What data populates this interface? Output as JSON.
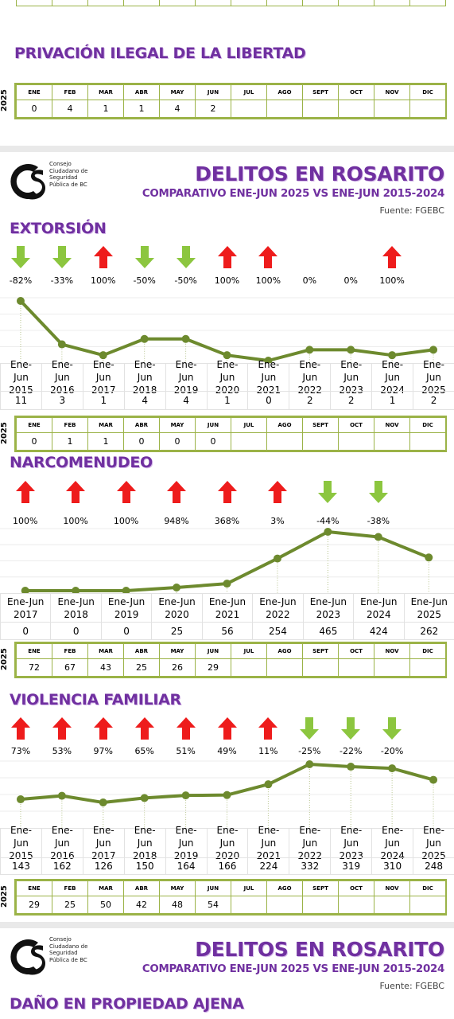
{
  "year": "2025",
  "months": [
    "ENE",
    "FEB",
    "MAR",
    "ABR",
    "MAY",
    "JUN",
    "JUL",
    "AGO",
    "SEPT",
    "OCT",
    "NOV",
    "DIC"
  ],
  "privacion": {
    "title": "PRIVACIÓN ILEGAL DE LA LIBERTAD",
    "monthly": [
      0,
      4,
      1,
      1,
      4,
      2
    ]
  },
  "headers": [
    {
      "org": "Consejo Ciudadano de Seguridad Pública de BC",
      "title": "DELITOS EN ROSARITO",
      "subtitle": "COMPARATIVO ENE-JUN 2025 VS ENE-JUN 2015-2024",
      "source": "Fuente: FGEBC"
    },
    {
      "org": "Consejo Ciudadano de Seguridad Pública de BC",
      "title": "DELITOS EN ROSARITO",
      "subtitle": "COMPARATIVO ENE-JUN 2025 VS ENE-JUN 2015-2024",
      "source": "Fuente: FGEBC"
    }
  ],
  "crimes": [
    {
      "title": "EXTORSIÓN",
      "type": "line",
      "color": "#6d8a2e",
      "categories": [
        "Ene-Jun 2015",
        "Ene-Jun 2016",
        "Ene-Jun 2017",
        "Ene-Jun 2018",
        "Ene-Jun 2019",
        "Ene-Jun 2020",
        "Ene-Jun 2021",
        "Ene-Jun 2022",
        "Ene-Jun 2023",
        "Ene-Jun 2024",
        "Ene-Jun 2025"
      ],
      "values": [
        11,
        3,
        1,
        4,
        4,
        1,
        0,
        2,
        2,
        1,
        2
      ],
      "changes": [
        "-82%",
        "-33%",
        "100%",
        "-50%",
        "-50%",
        "100%",
        "100%",
        "0%",
        "0%",
        "100%"
      ],
      "monthly": [
        0,
        1,
        1,
        0,
        0,
        0
      ]
    },
    {
      "title": "NARCOMENUDEO",
      "type": "line",
      "color": "#6d8a2e",
      "categories": [
        "Ene-Jun 2017",
        "Ene-Jun 2018",
        "Ene-Jun 2019",
        "Ene-Jun 2020",
        "Ene-Jun 2021",
        "Ene-Jun 2022",
        "Ene-Jun 2023",
        "Ene-Jun 2024",
        "Ene-Jun 2025"
      ],
      "values": [
        0,
        0,
        0,
        25,
        56,
        254,
        465,
        424,
        262
      ],
      "changes": [
        "100%",
        "100%",
        "100%",
        "948%",
        "368%",
        "3%",
        "-44%",
        "-38%"
      ],
      "monthly": [
        72,
        67,
        43,
        25,
        26,
        29
      ]
    },
    {
      "title": "VIOLENCIA FAMILIAR",
      "type": "line",
      "color": "#6d8a2e",
      "categories": [
        "Ene-Jun 2015",
        "Ene-Jun 2016",
        "Ene-Jun 2017",
        "Ene-Jun 2018",
        "Ene-Jun 2019",
        "Ene-Jun 2020",
        "Ene-Jun 2021",
        "Ene-Jun 2022",
        "Ene-Jun 2023",
        "Ene-Jun 2024",
        "Ene-Jun 2025"
      ],
      "values": [
        143,
        162,
        126,
        150,
        164,
        166,
        224,
        332,
        319,
        310,
        248
      ],
      "changes": [
        "73%",
        "53%",
        "97%",
        "65%",
        "51%",
        "49%",
        "11%",
        "-25%",
        "-22%",
        "-20%"
      ],
      "monthly": [
        29,
        25,
        50,
        42,
        48,
        54
      ]
    }
  ],
  "dano": {
    "title": "DAÑO EN PROPIEDAD AJENA"
  }
}
